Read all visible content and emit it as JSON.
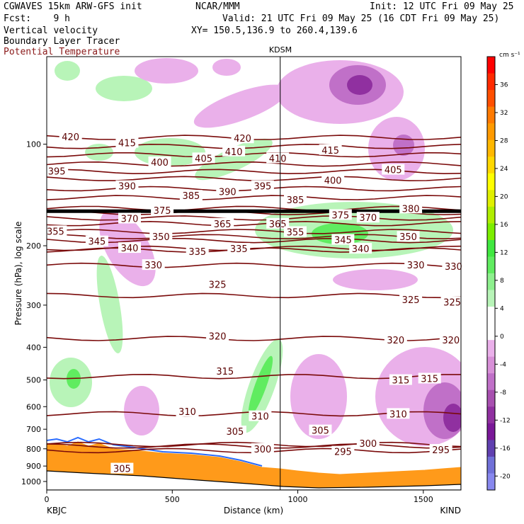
{
  "header": {
    "model": "CGWAVES 15km ARW-GFS init",
    "center": "NCAR/MMM",
    "init": "Init: 12 UTC Fri 09 May 25",
    "fcst": "Fcst:    9 h",
    "valid": "Valid: 21 UTC Fri 09 May 25 (16 CDT Fri 09 May 25)",
    "field1": "Vertical velocity",
    "field2": "Boundary Layer Tracer",
    "field3": "Potential Temperature",
    "xy": "XY= 150.5,136.9 to 260.4,139.6"
  },
  "chart_data": {
    "type": "heatmap",
    "title": "Vertical velocity / Boundary Layer Tracer / Potential Temperature cross section",
    "xlabel": "Distance (km)",
    "ylabel": "Pressure (hPa), log scale",
    "xlim": [
      0,
      1650
    ],
    "ylim": [
      1060,
      55
    ],
    "y_scale": "log",
    "x_ticks": [
      "0",
      "500",
      "1000",
      "1500"
    ],
    "y_ticks": [
      "100",
      "200",
      "300",
      "400",
      "500",
      "600",
      "700",
      "800",
      "900",
      "1000"
    ],
    "y_tick_values": [
      100,
      200,
      300,
      400,
      500,
      600,
      700,
      800,
      900,
      1000
    ],
    "station_left": "KBJC",
    "station_right": "KIND",
    "marker_label": "KDSM",
    "marker_x": 930,
    "colorbar": {
      "unit": "cm s⁻¹",
      "ticks": [
        "36",
        "32",
        "28",
        "24",
        "20",
        "16",
        "12",
        "8",
        "4",
        "0",
        "-4",
        "-8",
        "-12",
        "-16",
        "-20"
      ],
      "tick_values": [
        36,
        32,
        28,
        24,
        20,
        16,
        12,
        8,
        4,
        0,
        -4,
        -8,
        -12,
        -16,
        -20
      ],
      "colors": [
        "#ff0000",
        "#ff2a00",
        "#ff4f00",
        "#ff7a00",
        "#ff9a00",
        "#ffb800",
        "#ffd800",
        "#ffff00",
        "#e0f000",
        "#b0ee00",
        "#7cee00",
        "#40e840",
        "#60ec60",
        "#8ef08e",
        "#b8f4b8",
        "#ffffff",
        "#ffffff",
        "#eab0ea",
        "#d890d8",
        "#c070c8",
        "#a850b0",
        "#9030a0",
        "#7a1898",
        "#6040b0",
        "#7070d8",
        "#8888ee"
      ]
    },
    "theta_labels": [
      {
        "x": 95,
        "p": 95,
        "v": "420"
      },
      {
        "x": 320,
        "p": 99,
        "v": "415"
      },
      {
        "x": 780,
        "p": 96,
        "v": "420"
      },
      {
        "x": 1130,
        "p": 104,
        "v": "415"
      },
      {
        "x": 40,
        "p": 120,
        "v": "395"
      },
      {
        "x": 450,
        "p": 113,
        "v": "400"
      },
      {
        "x": 625,
        "p": 110,
        "v": "405"
      },
      {
        "x": 745,
        "p": 105,
        "v": "410"
      },
      {
        "x": 920,
        "p": 110,
        "v": "410"
      },
      {
        "x": 1380,
        "p": 119,
        "v": "405"
      },
      {
        "x": 1140,
        "p": 128,
        "v": "400"
      },
      {
        "x": 320,
        "p": 133,
        "v": "390"
      },
      {
        "x": 720,
        "p": 138,
        "v": "390"
      },
      {
        "x": 860,
        "p": 133,
        "v": "395"
      },
      {
        "x": 575,
        "p": 142,
        "v": "385"
      },
      {
        "x": 990,
        "p": 146,
        "v": "385"
      },
      {
        "x": 1450,
        "p": 155,
        "v": "380"
      },
      {
        "x": 460,
        "p": 157,
        "v": "375"
      },
      {
        "x": 1170,
        "p": 162,
        "v": "375"
      },
      {
        "x": 330,
        "p": 166,
        "v": "370"
      },
      {
        "x": 1280,
        "p": 165,
        "v": "370"
      },
      {
        "x": 700,
        "p": 172,
        "v": "365"
      },
      {
        "x": 920,
        "p": 172,
        "v": "365"
      },
      {
        "x": 35,
        "p": 181,
        "v": "355"
      },
      {
        "x": 990,
        "p": 182,
        "v": "355"
      },
      {
        "x": 455,
        "p": 188,
        "v": "350"
      },
      {
        "x": 1440,
        "p": 188,
        "v": "350"
      },
      {
        "x": 200,
        "p": 194,
        "v": "345"
      },
      {
        "x": 1180,
        "p": 192,
        "v": "345"
      },
      {
        "x": 330,
        "p": 203,
        "v": "340"
      },
      {
        "x": 1250,
        "p": 204,
        "v": "340"
      },
      {
        "x": 600,
        "p": 208,
        "v": "335"
      },
      {
        "x": 765,
        "p": 204,
        "v": "335"
      },
      {
        "x": 425,
        "p": 228,
        "v": "330"
      },
      {
        "x": 1470,
        "p": 228,
        "v": "330"
      },
      {
        "x": 1620,
        "p": 230,
        "v": "330"
      },
      {
        "x": 680,
        "p": 260,
        "v": "325"
      },
      {
        "x": 1450,
        "p": 289,
        "v": "325"
      },
      {
        "x": 1615,
        "p": 294,
        "v": "325"
      },
      {
        "x": 680,
        "p": 370,
        "v": "320"
      },
      {
        "x": 1390,
        "p": 380,
        "v": "320"
      },
      {
        "x": 1610,
        "p": 380,
        "v": "320"
      },
      {
        "x": 710,
        "p": 470,
        "v": "315"
      },
      {
        "x": 1410,
        "p": 500,
        "v": "315"
      },
      {
        "x": 1525,
        "p": 495,
        "v": "315"
      },
      {
        "x": 560,
        "p": 620,
        "v": "310"
      },
      {
        "x": 850,
        "p": 640,
        "v": "310"
      },
      {
        "x": 1400,
        "p": 630,
        "v": "310"
      },
      {
        "x": 750,
        "p": 710,
        "v": "305"
      },
      {
        "x": 1090,
        "p": 705,
        "v": "305"
      },
      {
        "x": 860,
        "p": 800,
        "v": "300"
      },
      {
        "x": 1280,
        "p": 770,
        "v": "300"
      },
      {
        "x": 1180,
        "p": 815,
        "v": "295"
      },
      {
        "x": 1570,
        "p": 805,
        "v": "295"
      },
      {
        "x": 300,
        "p": 915,
        "v": "305"
      }
    ]
  }
}
